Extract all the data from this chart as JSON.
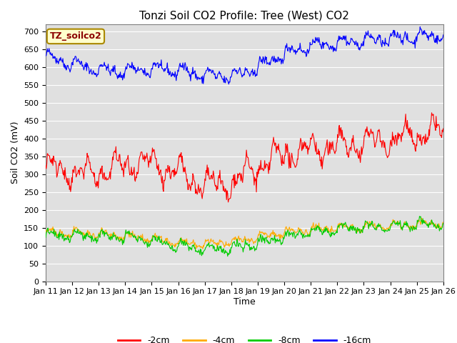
{
  "title": "Tonzi Soil CO2 Profile: Tree (West) CO2",
  "ylabel": "Soil CO2 (mV)",
  "xlabel": "Time",
  "legend_label": "TZ_soilco2",
  "ylim": [
    0,
    720
  ],
  "yticks": [
    0,
    50,
    100,
    150,
    200,
    250,
    300,
    350,
    400,
    450,
    500,
    550,
    600,
    650,
    700
  ],
  "xtick_labels": [
    "Jan 11",
    "Jan 12",
    "Jan 13",
    "Jan 14",
    "Jan 15",
    "Jan 16",
    "Jan 17",
    "Jan 18",
    "Jan 19",
    "Jan 20",
    "Jan 21",
    "Jan 22",
    "Jan 23",
    "Jan 24",
    "Jan 25",
    "Jan 26"
  ],
  "series_labels": [
    "-2cm",
    "-4cm",
    "-8cm",
    "-16cm"
  ],
  "series_colors": [
    "#ff0000",
    "#ffaa00",
    "#00cc00",
    "#0000ff"
  ],
  "plot_bg_color": "#e0e0e0",
  "legend_box_color": "#ffffcc",
  "legend_box_edgecolor": "#aa8800",
  "title_fontsize": 11,
  "axis_fontsize": 9,
  "tick_fontsize": 8,
  "legend_fontsize": 9
}
